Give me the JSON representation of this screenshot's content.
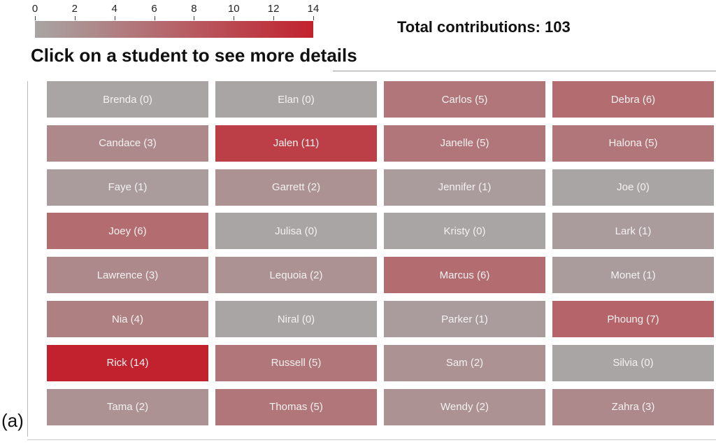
{
  "legend": {
    "ticks": [
      "0",
      "2",
      "4",
      "6",
      "8",
      "10",
      "12",
      "14"
    ],
    "min": 0,
    "max": 14,
    "color_low": "#a8a5a4",
    "color_high": "#c2222e"
  },
  "total_label": "Total contributions: 103",
  "instruction": "Click on a student to see more details",
  "panel_label": "(a)",
  "students": [
    {
      "label": "Brenda (0)",
      "count": 0
    },
    {
      "label": "Elan (0)",
      "count": 0
    },
    {
      "label": "Carlos (5)",
      "count": 5
    },
    {
      "label": "Debra (6)",
      "count": 6
    },
    {
      "label": "Candace (3)",
      "count": 3
    },
    {
      "label": "Jalen (11)",
      "count": 11
    },
    {
      "label": "Janelle (5)",
      "count": 5
    },
    {
      "label": "Halona (5)",
      "count": 5
    },
    {
      "label": "Faye (1)",
      "count": 1
    },
    {
      "label": "Garrett (2)",
      "count": 2
    },
    {
      "label": "Jennifer (1)",
      "count": 1
    },
    {
      "label": "Joe (0)",
      "count": 0
    },
    {
      "label": "Joey (6)",
      "count": 6
    },
    {
      "label": "Julisa (0)",
      "count": 0
    },
    {
      "label": "Kristy (0)",
      "count": 0
    },
    {
      "label": "Lark (1)",
      "count": 1
    },
    {
      "label": "Lawrence (3)",
      "count": 3
    },
    {
      "label": "Lequoia (2)",
      "count": 2
    },
    {
      "label": "Marcus (6)",
      "count": 6
    },
    {
      "label": "Monet (1)",
      "count": 1
    },
    {
      "label": "Nia (4)",
      "count": 4
    },
    {
      "label": "Niral (0)",
      "count": 0
    },
    {
      "label": "Parker (1)",
      "count": 1
    },
    {
      "label": "Phoung (7)",
      "count": 7
    },
    {
      "label": "Rick (14)",
      "count": 14
    },
    {
      "label": "Russell (5)",
      "count": 5
    },
    {
      "label": "Sam (2)",
      "count": 2
    },
    {
      "label": "Silvia (0)",
      "count": 0
    },
    {
      "label": "Tama (2)",
      "count": 2
    },
    {
      "label": "Thomas (5)",
      "count": 5
    },
    {
      "label": "Wendy (2)",
      "count": 2
    },
    {
      "label": "Zahra (3)",
      "count": 3
    }
  ]
}
